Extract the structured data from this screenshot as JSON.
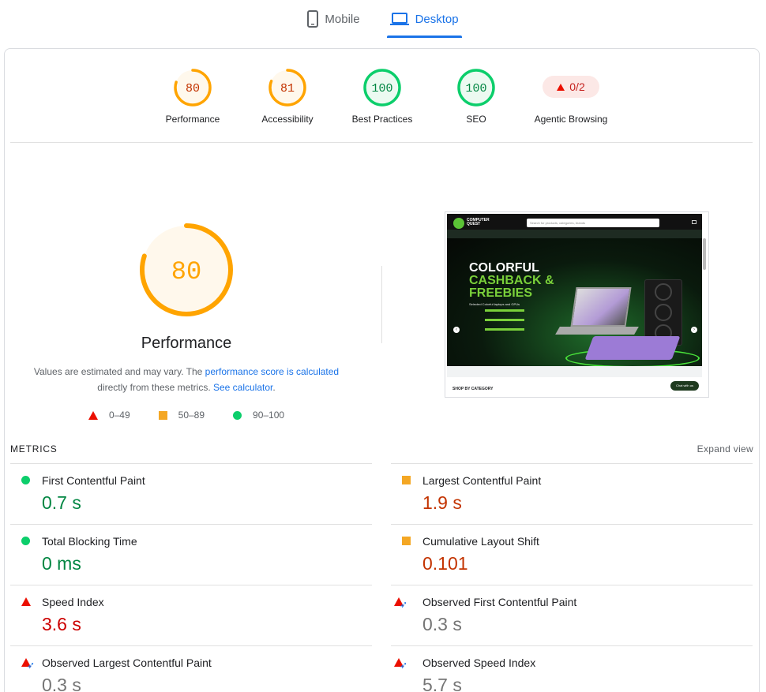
{
  "tabs": [
    {
      "label": "Mobile",
      "icon": "phone-icon",
      "active": false
    },
    {
      "label": "Desktop",
      "icon": "laptop-icon",
      "active": true
    }
  ],
  "scores": [
    {
      "value": "80",
      "label": "Performance",
      "status": "average",
      "fraction": 0.8
    },
    {
      "value": "81",
      "label": "Accessibility",
      "status": "average",
      "fraction": 0.81
    },
    {
      "value": "100",
      "label": "Best Practices",
      "status": "pass",
      "fraction": 1.0
    },
    {
      "value": "100",
      "label": "SEO",
      "status": "pass",
      "fraction": 1.0
    },
    {
      "value": "0/2",
      "label": "Agentic Browsing",
      "status": "fail"
    }
  ],
  "performance": {
    "score": "80",
    "fraction": 0.8,
    "title": "Performance",
    "desc_part1": "Values are estimated and may vary. The ",
    "desc_link1": "performance score is calculated",
    "desc_part2": "directly from these metrics. ",
    "desc_link2": "See calculator",
    "desc_end": "."
  },
  "legend": [
    {
      "range": "0–49",
      "shape": "triangle",
      "color": "#eb0f00"
    },
    {
      "range": "50–89",
      "shape": "square",
      "color": "#f4a724"
    },
    {
      "range": "90–100",
      "shape": "circle",
      "color": "#0cce6b"
    }
  ],
  "screenshot": {
    "logo_line1": "COMPUTER",
    "logo_line2": "QUEST",
    "search_placeholder": "Search for products, categories, brands",
    "nav_items": "Laptops   Desktops   Monitors   Gaming   Printers   CCTVs   Peripherals   PC Builder   Track Order",
    "hero_line1": "COLORFUL",
    "hero_line2": "CASHBACK &",
    "hero_line3": "FREEBIES",
    "hero_sub": "Selected Colorful laptops and GPUs",
    "shop_category": "SHOP BY CATEGORY",
    "chat_label": "Chat with us"
  },
  "metrics": {
    "title": "METRICS",
    "expand_label": "Expand view",
    "items": [
      {
        "name": "First Contentful Paint",
        "value": "0.7 s",
        "status": "pass"
      },
      {
        "name": "Largest Contentful Paint",
        "value": "1.9 s",
        "status": "average"
      },
      {
        "name": "Total Blocking Time",
        "value": "0 ms",
        "status": "pass"
      },
      {
        "name": "Cumulative Layout Shift",
        "value": "0.101",
        "status": "average"
      },
      {
        "name": "Speed Index",
        "value": "3.6 s",
        "status": "fail"
      },
      {
        "name": "Observed First Contentful Paint",
        "value": "0.3 s",
        "status": "observed"
      },
      {
        "name": "Observed Largest Contentful Paint",
        "value": "0.3 s",
        "status": "observed"
      },
      {
        "name": "Observed Speed Index",
        "value": "5.7 s",
        "status": "observed"
      }
    ]
  },
  "colors": {
    "pass": "#0cce6b",
    "average": "#ffa400",
    "fail": "#eb0f00",
    "accent": "#1a73e8"
  }
}
